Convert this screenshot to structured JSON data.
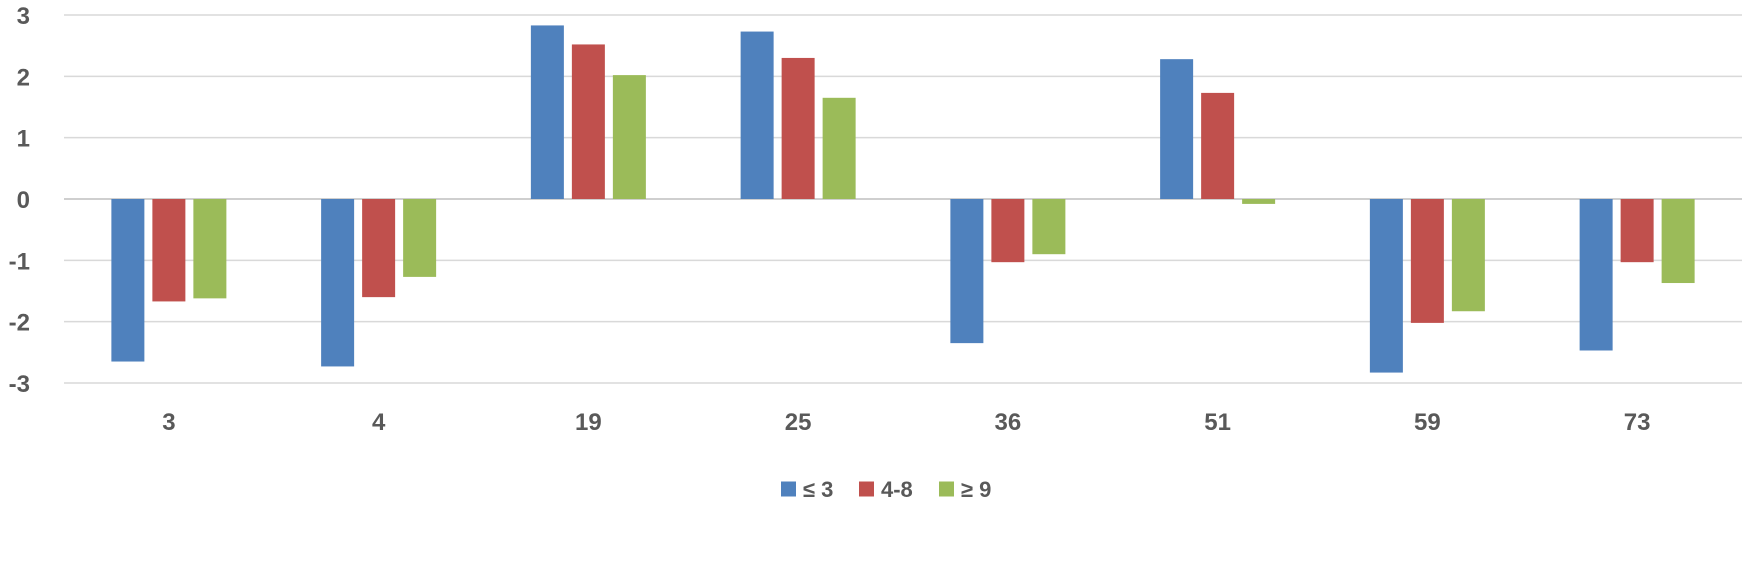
{
  "chart_data": {
    "type": "bar",
    "categories": [
      "3",
      "4",
      "19",
      "25",
      "36",
      "51",
      "59",
      "73"
    ],
    "series": [
      {
        "name": "≤ 3",
        "color": "#4f81bd",
        "values": [
          -2.65,
          -2.73,
          2.83,
          2.73,
          -2.35,
          2.28,
          -2.83,
          -2.47
        ]
      },
      {
        "name": "4-8",
        "color": "#c0504d",
        "values": [
          -1.67,
          -1.6,
          2.52,
          2.3,
          -1.03,
          1.73,
          -2.02,
          -1.03
        ]
      },
      {
        "name": "≥ 9",
        "color": "#9bbb59",
        "values": [
          -1.62,
          -1.27,
          2.02,
          1.65,
          -0.9,
          -0.08,
          -1.83,
          -1.37
        ]
      }
    ],
    "yticks": [
      "3",
      "2",
      "1",
      "0",
      "-1",
      "-2",
      "-3"
    ],
    "ylim": [
      -3,
      3
    ],
    "grid": true,
    "legend": "bottom-center",
    "title": "",
    "xlabel": "",
    "ylabel": ""
  }
}
